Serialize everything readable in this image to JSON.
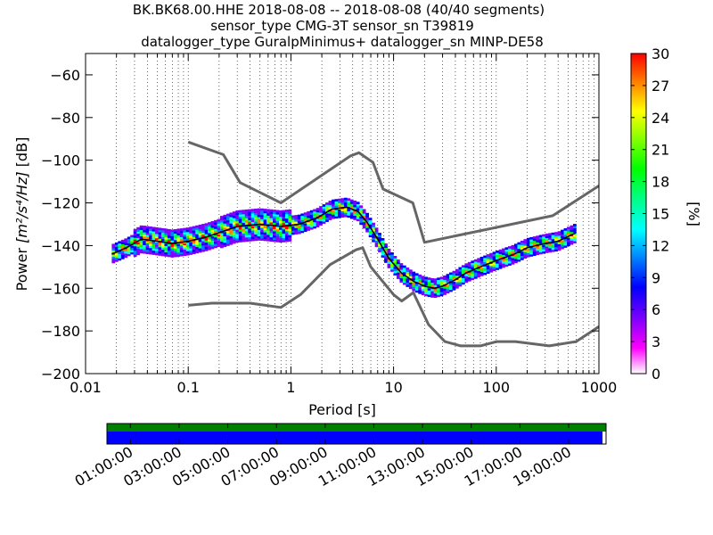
{
  "chart_data": [
    {
      "type": "heatmap",
      "title_lines": [
        "BK.BK68.00.HHE   2018-08-08 -- 2018-08-08  (40/40 segments)",
        "sensor_type CMG-3T sensor_sn T39819",
        "datalogger_type GuralpMinimus+ datalogger_sn MINP-DE58"
      ],
      "xlabel": "Period [s]",
      "ylabel": "Power [m²/s⁴/Hz] [dB]",
      "ylabel_main": "Power ",
      "ylabel_unit": "[m²/s⁴/Hz]",
      "ylabel_db": " [dB]",
      "x_scale": "log",
      "xlim": [
        0.01,
        1000
      ],
      "ylim": [
        -200,
        -50
      ],
      "x_ticks": [
        0.01,
        0.1,
        1,
        10,
        100,
        1000
      ],
      "x_tick_labels": [
        "0.01",
        "0.1",
        "1",
        "10",
        "100",
        "1000"
      ],
      "y_ticks": [
        -200,
        -180,
        -160,
        -140,
        -120,
        -100,
        -80,
        -60
      ],
      "y_tick_labels": [
        "−200",
        "−180",
        "−160",
        "−140",
        "−120",
        "−100",
        "−80",
        "−60"
      ],
      "grid": "vertical dotted",
      "colorbar": {
        "label": "[%]",
        "range": [
          0,
          30
        ],
        "ticks": [
          0,
          3,
          6,
          9,
          12,
          15,
          18,
          21,
          24,
          27,
          30
        ],
        "tick_labels": [
          "0",
          "3",
          "6",
          "9",
          "12",
          "15",
          "18",
          "21",
          "24",
          "27",
          "30"
        ],
        "colormap": [
          "#ffffff",
          "#ff00ff",
          "#8000ff",
          "#0000ff",
          "#0080ff",
          "#00ffff",
          "#00ff80",
          "#00ff00",
          "#80ff00",
          "#ffff00",
          "#ff8000",
          "#ff0000"
        ]
      },
      "mean_curve": {
        "x": [
          0.018,
          0.025,
          0.035,
          0.05,
          0.07,
          0.1,
          0.15,
          0.2,
          0.3,
          0.5,
          0.8,
          1.2,
          1.8,
          2.5,
          3.5,
          4.5,
          5.5,
          7,
          9,
          12,
          16,
          20,
          25,
          30,
          40,
          50,
          70,
          100,
          150,
          200,
          300,
          400,
          600
        ],
        "y": [
          -144,
          -141,
          -137,
          -138,
          -139,
          -138,
          -136,
          -134,
          -131,
          -130,
          -131,
          -130,
          -127,
          -123,
          -122,
          -124,
          -129,
          -137,
          -146,
          -153,
          -157,
          -159,
          -160,
          -159,
          -156,
          -153,
          -150,
          -147,
          -144,
          -141,
          -139,
          -138,
          -134
        ]
      },
      "nlnm": {
        "x": [
          0.1,
          0.17,
          0.4,
          0.8,
          1.24,
          2.4,
          4.3,
          5,
          6,
          10,
          12,
          15.6,
          21.9,
          31.6,
          45,
          70,
          101,
          154,
          328,
          600,
          1000
        ],
        "y": [
          -168,
          -167,
          -167,
          -169,
          -163,
          -149,
          -142,
          -141,
          -150,
          -163,
          -166,
          -162,
          -177,
          -185,
          -187,
          -187,
          -185,
          -185,
          -187,
          -185,
          -178
        ]
      },
      "nhnm": {
        "x": [
          0.1,
          0.22,
          0.32,
          0.8,
          3.8,
          4.6,
          6.3,
          7.9,
          15.4,
          20,
          354.8,
          1000
        ],
        "y": [
          -91.5,
          -97.4,
          -110.5,
          -120,
          -98,
          -96.5,
          -101,
          -113.5,
          -120,
          -138.5,
          -126,
          -112
        ]
      }
    },
    {
      "type": "timeline",
      "tick_labels": [
        "01:00:00",
        "03:00:00",
        "05:00:00",
        "07:00:00",
        "09:00:00",
        "11:00:00",
        "13:00:00",
        "15:00:00",
        "17:00:00",
        "19:00:00"
      ],
      "bar_colors": [
        "#008000",
        "#0000ff"
      ]
    }
  ]
}
